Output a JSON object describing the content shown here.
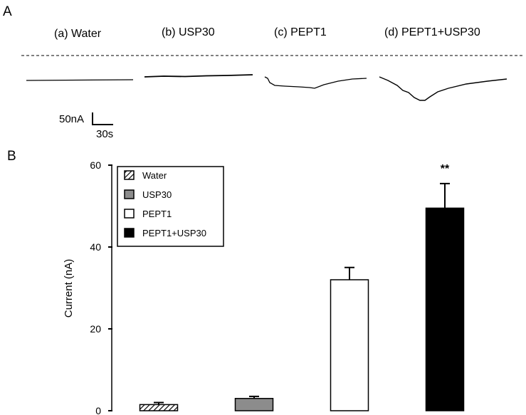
{
  "panel_a": {
    "label": "A",
    "traces": [
      {
        "label": "(a) Water"
      },
      {
        "label": "(b) USP30"
      },
      {
        "label": "(c) PEPT1"
      },
      {
        "label": "(d) PEPT1+USP30"
      }
    ],
    "scale_bar": {
      "current_label": "50nA",
      "time_label": "30s"
    }
  },
  "panel_b": {
    "label": "B"
  },
  "chart_data": {
    "type": "bar",
    "categories": [
      "Water",
      "USP30",
      "PEPT1",
      "PEPT1+USP30"
    ],
    "values": [
      1.5,
      3.0,
      32.0,
      49.5
    ],
    "errors": [
      0.5,
      0.5,
      3.0,
      6.0
    ],
    "fills": [
      "hatched",
      "#8c8c8c",
      "#ffffff",
      "#000000"
    ],
    "title": "",
    "xlabel": "",
    "ylabel": "Current (nA)",
    "ylim": [
      0,
      60
    ],
    "yticks": [
      0,
      20,
      40,
      60
    ],
    "legend": [
      "Water",
      "USP30",
      "PEPT1",
      "PEPT1+USP30"
    ],
    "legend_position": "top-left",
    "annotations": [
      {
        "category": "PEPT1+USP30",
        "text": "**"
      }
    ],
    "grid": false
  }
}
